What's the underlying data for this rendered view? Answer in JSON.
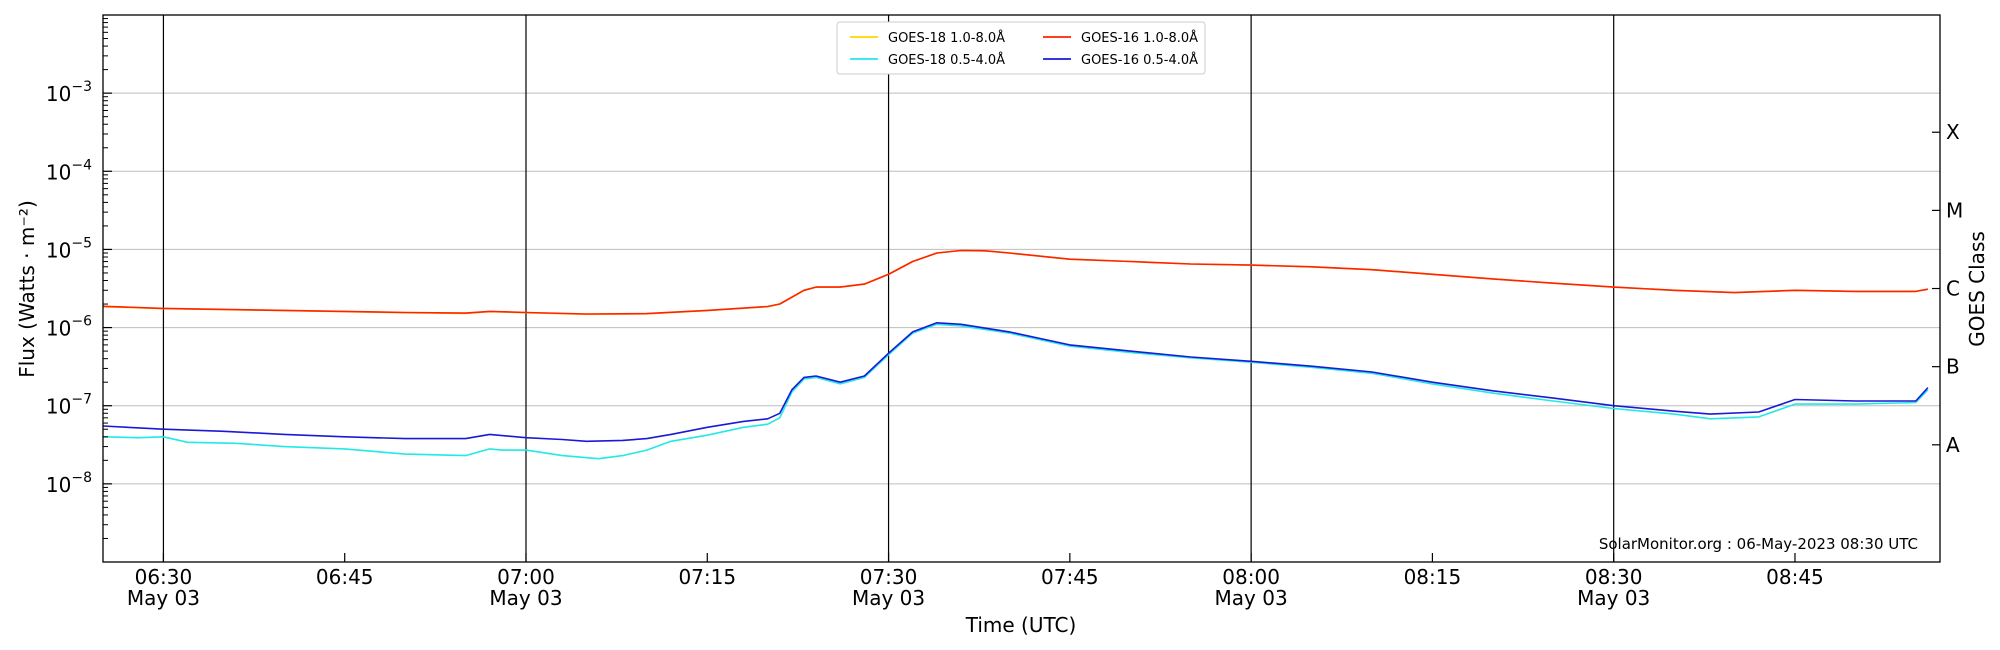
{
  "chart_data": {
    "type": "line",
    "xlabel": "Time (UTC)",
    "ylabel": "Flux (Watts · m⁻²)",
    "ylabel_right": "GOES Class",
    "y_scale": "log",
    "xlim": [
      "06:25",
      "08:57"
    ],
    "ylim": [
      1e-09,
      0.01
    ],
    "y_ticks": [
      {
        "value": 1e-08,
        "base": "10",
        "exp": "−8"
      },
      {
        "value": 1e-07,
        "base": "10",
        "exp": "−7"
      },
      {
        "value": 1e-06,
        "base": "10",
        "exp": "−6"
      },
      {
        "value": 1e-05,
        "base": "10",
        "exp": "−5"
      },
      {
        "value": 0.0001,
        "base": "10",
        "exp": "−4"
      },
      {
        "value": 0.001,
        "base": "10",
        "exp": "−3"
      }
    ],
    "x_ticks": [
      {
        "time": "06:30",
        "label": "06:30",
        "date": "May 03"
      },
      {
        "time": "06:45",
        "label": "06:45",
        "date": ""
      },
      {
        "time": "07:00",
        "label": "07:00",
        "date": "May 03"
      },
      {
        "time": "07:15",
        "label": "07:15",
        "date": ""
      },
      {
        "time": "07:30",
        "label": "07:30",
        "date": "May 03"
      },
      {
        "time": "07:45",
        "label": "07:45",
        "date": ""
      },
      {
        "time": "08:00",
        "label": "08:00",
        "date": "May 03"
      },
      {
        "time": "08:15",
        "label": "08:15",
        "date": ""
      },
      {
        "time": "08:30",
        "label": "08:30",
        "date": "May 03"
      },
      {
        "time": "08:45",
        "label": "08:45",
        "date": ""
      }
    ],
    "vertical_lines": [
      "06:30",
      "07:00",
      "07:30",
      "08:00",
      "08:30"
    ],
    "horizontal_grid": [
      1e-08,
      1e-07,
      1e-06,
      1e-05,
      0.0001,
      0.001
    ],
    "goes_classes": [
      {
        "label": "A",
        "value": 3.16e-08
      },
      {
        "label": "B",
        "value": 3.16e-07
      },
      {
        "label": "C",
        "value": 3.16e-06
      },
      {
        "label": "M",
        "value": 3.16e-05
      },
      {
        "label": "X",
        "value": 0.000316
      }
    ],
    "legend_position": "top-center",
    "annotation": "SolarMonitor.org : 06-May-2023 08:30 UTC",
    "series": [
      {
        "name": "GOES-18 1.0-8.0Å",
        "color": "#ffd700",
        "points": [
          [
            "06:25",
            1.85e-06
          ],
          [
            "06:30",
            1.75e-06
          ],
          [
            "06:40",
            1.65e-06
          ],
          [
            "06:50",
            1.55e-06
          ],
          [
            "06:55",
            1.52e-06
          ],
          [
            "06:57",
            1.6e-06
          ],
          [
            "07:00",
            1.55e-06
          ],
          [
            "07:05",
            1.48e-06
          ],
          [
            "07:10",
            1.5e-06
          ],
          [
            "07:15",
            1.65e-06
          ],
          [
            "07:20",
            1.85e-06
          ],
          [
            "07:21",
            2e-06
          ],
          [
            "07:23",
            3e-06
          ],
          [
            "07:24",
            3.3e-06
          ],
          [
            "07:26",
            3.3e-06
          ],
          [
            "07:28",
            3.6e-06
          ],
          [
            "07:30",
            4.8e-06
          ],
          [
            "07:32",
            7e-06
          ],
          [
            "07:34",
            9e-06
          ],
          [
            "07:36",
            9.7e-06
          ],
          [
            "07:38",
            9.6e-06
          ],
          [
            "07:40",
            9e-06
          ],
          [
            "07:45",
            7.5e-06
          ],
          [
            "07:50",
            7e-06
          ],
          [
            "07:55",
            6.5e-06
          ],
          [
            "08:00",
            6.3e-06
          ],
          [
            "08:05",
            6e-06
          ],
          [
            "08:10",
            5.5e-06
          ],
          [
            "08:15",
            4.8e-06
          ],
          [
            "08:20",
            4.2e-06
          ],
          [
            "08:25",
            3.7e-06
          ],
          [
            "08:30",
            3.3e-06
          ],
          [
            "08:35",
            3e-06
          ],
          [
            "08:40",
            2.8e-06
          ],
          [
            "08:45",
            3e-06
          ],
          [
            "08:50",
            2.9e-06
          ],
          [
            "08:55",
            2.9e-06
          ],
          [
            "08:56",
            3.1e-06
          ]
        ]
      },
      {
        "name": "GOES-18 0.5-4.0Å",
        "color": "#22e8e8",
        "points": [
          [
            "06:25",
            4e-08
          ],
          [
            "06:28",
            3.9e-08
          ],
          [
            "06:30",
            4e-08
          ],
          [
            "06:32",
            3.4e-08
          ],
          [
            "06:36",
            3.3e-08
          ],
          [
            "06:40",
            3e-08
          ],
          [
            "06:45",
            2.8e-08
          ],
          [
            "06:50",
            2.4e-08
          ],
          [
            "06:55",
            2.3e-08
          ],
          [
            "06:57",
            2.8e-08
          ],
          [
            "06:58",
            2.7e-08
          ],
          [
            "07:00",
            2.7e-08
          ],
          [
            "07:03",
            2.3e-08
          ],
          [
            "07:06",
            2.1e-08
          ],
          [
            "07:08",
            2.3e-08
          ],
          [
            "07:10",
            2.7e-08
          ],
          [
            "07:12",
            3.5e-08
          ],
          [
            "07:15",
            4.2e-08
          ],
          [
            "07:18",
            5.3e-08
          ],
          [
            "07:20",
            5.8e-08
          ],
          [
            "07:21",
            7e-08
          ],
          [
            "07:22",
            1.5e-07
          ],
          [
            "07:23",
            2.2e-07
          ],
          [
            "07:24",
            2.3e-07
          ],
          [
            "07:26",
            1.9e-07
          ],
          [
            "07:28",
            2.3e-07
          ],
          [
            "07:30",
            4.5e-07
          ],
          [
            "07:32",
            8.5e-07
          ],
          [
            "07:34",
            1.1e-06
          ],
          [
            "07:36",
            1.05e-06
          ],
          [
            "07:40",
            8.5e-07
          ],
          [
            "07:45",
            5.8e-07
          ],
          [
            "07:50",
            4.8e-07
          ],
          [
            "07:55",
            4.1e-07
          ],
          [
            "08:00",
            3.6e-07
          ],
          [
            "08:05",
            3.1e-07
          ],
          [
            "08:10",
            2.6e-07
          ],
          [
            "08:15",
            1.9e-07
          ],
          [
            "08:20",
            1.45e-07
          ],
          [
            "08:25",
            1.15e-07
          ],
          [
            "08:30",
            9.2e-08
          ],
          [
            "08:35",
            7.8e-08
          ],
          [
            "08:38",
            6.8e-08
          ],
          [
            "08:42",
            7.2e-08
          ],
          [
            "08:45",
            1.05e-07
          ],
          [
            "08:50",
            1.05e-07
          ],
          [
            "08:55",
            1.1e-07
          ],
          [
            "08:56",
            1.6e-07
          ]
        ]
      },
      {
        "name": "GOES-16 1.0-8.0Å",
        "color": "#ff2200",
        "points": [
          [
            "06:25",
            1.87e-06
          ],
          [
            "06:30",
            1.76e-06
          ],
          [
            "06:40",
            1.66e-06
          ],
          [
            "06:50",
            1.56e-06
          ],
          [
            "06:55",
            1.53e-06
          ],
          [
            "06:57",
            1.61e-06
          ],
          [
            "07:00",
            1.56e-06
          ],
          [
            "07:05",
            1.49e-06
          ],
          [
            "07:10",
            1.51e-06
          ],
          [
            "07:15",
            1.66e-06
          ],
          [
            "07:20",
            1.86e-06
          ],
          [
            "07:21",
            2e-06
          ],
          [
            "07:23",
            3e-06
          ],
          [
            "07:24",
            3.3e-06
          ],
          [
            "07:26",
            3.3e-06
          ],
          [
            "07:28",
            3.6e-06
          ],
          [
            "07:30",
            4.8e-06
          ],
          [
            "07:32",
            7e-06
          ],
          [
            "07:34",
            9e-06
          ],
          [
            "07:36",
            9.7e-06
          ],
          [
            "07:38",
            9.6e-06
          ],
          [
            "07:40",
            9e-06
          ],
          [
            "07:45",
            7.5e-06
          ],
          [
            "07:50",
            7e-06
          ],
          [
            "07:55",
            6.5e-06
          ],
          [
            "08:00",
            6.3e-06
          ],
          [
            "08:05",
            6e-06
          ],
          [
            "08:10",
            5.5e-06
          ],
          [
            "08:15",
            4.8e-06
          ],
          [
            "08:20",
            4.2e-06
          ],
          [
            "08:25",
            3.7e-06
          ],
          [
            "08:30",
            3.3e-06
          ],
          [
            "08:35",
            3e-06
          ],
          [
            "08:40",
            2.8e-06
          ],
          [
            "08:45",
            3e-06
          ],
          [
            "08:50",
            2.9e-06
          ],
          [
            "08:55",
            2.9e-06
          ],
          [
            "08:56",
            3.1e-06
          ]
        ]
      },
      {
        "name": "GOES-16 0.5-4.0Å",
        "color": "#1a1ad6",
        "points": [
          [
            "06:25",
            5.5e-08
          ],
          [
            "06:30",
            5e-08
          ],
          [
            "06:35",
            4.7e-08
          ],
          [
            "06:40",
            4.3e-08
          ],
          [
            "06:45",
            4e-08
          ],
          [
            "06:50",
            3.8e-08
          ],
          [
            "06:55",
            3.8e-08
          ],
          [
            "06:57",
            4.3e-08
          ],
          [
            "07:00",
            3.9e-08
          ],
          [
            "07:03",
            3.7e-08
          ],
          [
            "07:05",
            3.5e-08
          ],
          [
            "07:08",
            3.6e-08
          ],
          [
            "07:10",
            3.8e-08
          ],
          [
            "07:12",
            4.3e-08
          ],
          [
            "07:15",
            5.3e-08
          ],
          [
            "07:18",
            6.3e-08
          ],
          [
            "07:20",
            6.8e-08
          ],
          [
            "07:21",
            8e-08
          ],
          [
            "07:22",
            1.6e-07
          ],
          [
            "07:23",
            2.3e-07
          ],
          [
            "07:24",
            2.4e-07
          ],
          [
            "07:26",
            2e-07
          ],
          [
            "07:28",
            2.4e-07
          ],
          [
            "07:30",
            4.7e-07
          ],
          [
            "07:32",
            8.8e-07
          ],
          [
            "07:34",
            1.15e-06
          ],
          [
            "07:36",
            1.1e-06
          ],
          [
            "07:40",
            8.8e-07
          ],
          [
            "07:45",
            6e-07
          ],
          [
            "07:50",
            5e-07
          ],
          [
            "07:55",
            4.2e-07
          ],
          [
            "08:00",
            3.7e-07
          ],
          [
            "08:05",
            3.2e-07
          ],
          [
            "08:10",
            2.7e-07
          ],
          [
            "08:15",
            2e-07
          ],
          [
            "08:20",
            1.55e-07
          ],
          [
            "08:25",
            1.25e-07
          ],
          [
            "08:30",
            1e-07
          ],
          [
            "08:35",
            8.5e-08
          ],
          [
            "08:38",
            7.8e-08
          ],
          [
            "08:42",
            8.3e-08
          ],
          [
            "08:45",
            1.2e-07
          ],
          [
            "08:50",
            1.15e-07
          ],
          [
            "08:55",
            1.15e-07
          ],
          [
            "08:56",
            1.7e-07
          ]
        ]
      }
    ]
  }
}
